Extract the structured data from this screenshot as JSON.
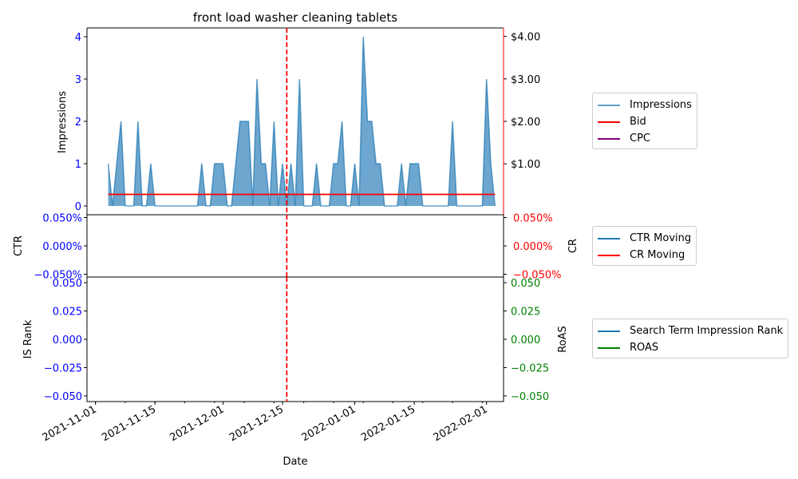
{
  "chart_data": [
    {
      "type": "area",
      "title": "front load washer cleaning tablets",
      "ylabel": "Impressions",
      "ylabel_right": "",
      "ylim": [
        0,
        4.2
      ],
      "y_ticks": [
        "0",
        "1",
        "2",
        "3",
        "4"
      ],
      "y_ticks_right": [
        "$1.00",
        "$2.00",
        "$3.00",
        "$4.00"
      ],
      "y_ticks_right_values": [
        1,
        2,
        3,
        4
      ],
      "y2lim": [
        -0.2,
        4.2
      ],
      "series": [
        {
          "name": "Impressions",
          "color": "#1f77b4",
          "points": [
            [
              "2021-11-04",
              1
            ],
            [
              "2021-11-05",
              0
            ],
            [
              "2021-11-06",
              1
            ],
            [
              "2021-11-07",
              2
            ],
            [
              "2021-11-08",
              0
            ],
            [
              "2021-11-09",
              0
            ],
            [
              "2021-11-10",
              0
            ],
            [
              "2021-11-11",
              2
            ],
            [
              "2021-11-12",
              0
            ],
            [
              "2021-11-13",
              0
            ],
            [
              "2021-11-14",
              1
            ],
            [
              "2021-11-15",
              0
            ],
            [
              "2021-11-16",
              0
            ],
            [
              "2021-11-17",
              0
            ],
            [
              "2021-11-18",
              0
            ],
            [
              "2021-11-19",
              0
            ],
            [
              "2021-11-20",
              0
            ],
            [
              "2021-11-21",
              0
            ],
            [
              "2021-11-22",
              0
            ],
            [
              "2021-11-23",
              0
            ],
            [
              "2021-11-24",
              0
            ],
            [
              "2021-11-25",
              0
            ],
            [
              "2021-11-26",
              1
            ],
            [
              "2021-11-27",
              0
            ],
            [
              "2021-11-28",
              0
            ],
            [
              "2021-11-29",
              1
            ],
            [
              "2021-11-30",
              1
            ],
            [
              "2021-12-01",
              1
            ],
            [
              "2021-12-02",
              0
            ],
            [
              "2021-12-03",
              0
            ],
            [
              "2021-12-04",
              1
            ],
            [
              "2021-12-05",
              2
            ],
            [
              "2021-12-06",
              2
            ],
            [
              "2021-12-07",
              2
            ],
            [
              "2021-12-08",
              0
            ],
            [
              "2021-12-09",
              3
            ],
            [
              "2021-12-10",
              1
            ],
            [
              "2021-12-11",
              1
            ],
            [
              "2021-12-12",
              0
            ],
            [
              "2021-12-13",
              2
            ],
            [
              "2021-12-14",
              0
            ],
            [
              "2021-12-15",
              1
            ],
            [
              "2021-12-16",
              0
            ],
            [
              "2021-12-17",
              1
            ],
            [
              "2021-12-18",
              0
            ],
            [
              "2021-12-19",
              3
            ],
            [
              "2021-12-20",
              0
            ],
            [
              "2021-12-21",
              0
            ],
            [
              "2021-12-22",
              0
            ],
            [
              "2021-12-23",
              1
            ],
            [
              "2021-12-24",
              0
            ],
            [
              "2021-12-25",
              0
            ],
            [
              "2021-12-26",
              0
            ],
            [
              "2021-12-27",
              1
            ],
            [
              "2021-12-28",
              1
            ],
            [
              "2021-12-29",
              2
            ],
            [
              "2021-12-30",
              0
            ],
            [
              "2021-12-31",
              0
            ],
            [
              "2022-01-01",
              1
            ],
            [
              "2022-01-02",
              0
            ],
            [
              "2022-01-03",
              4
            ],
            [
              "2022-01-04",
              2
            ],
            [
              "2022-01-05",
              2
            ],
            [
              "2022-01-06",
              1
            ],
            [
              "2022-01-07",
              1
            ],
            [
              "2022-01-08",
              0
            ],
            [
              "2022-01-09",
              0
            ],
            [
              "2022-01-10",
              0
            ],
            [
              "2022-01-11",
              0
            ],
            [
              "2022-01-12",
              1
            ],
            [
              "2022-01-13",
              0
            ],
            [
              "2022-01-14",
              1
            ],
            [
              "2022-01-15",
              1
            ],
            [
              "2022-01-16",
              1
            ],
            [
              "2022-01-17",
              0
            ],
            [
              "2022-01-18",
              0
            ],
            [
              "2022-01-19",
              0
            ],
            [
              "2022-01-20",
              0
            ],
            [
              "2022-01-21",
              0
            ],
            [
              "2022-01-22",
              0
            ],
            [
              "2022-01-23",
              0
            ],
            [
              "2022-01-24",
              2
            ],
            [
              "2022-01-25",
              0
            ],
            [
              "2022-01-26",
              0
            ],
            [
              "2022-01-27",
              0
            ],
            [
              "2022-01-28",
              0
            ],
            [
              "2022-01-29",
              0
            ],
            [
              "2022-01-30",
              0
            ],
            [
              "2022-01-31",
              0
            ],
            [
              "2022-02-01",
              3
            ],
            [
              "2022-02-02",
              1
            ],
            [
              "2022-02-03",
              0
            ]
          ]
        },
        {
          "name": "Bid",
          "color": "#ff0000",
          "axis": "right",
          "points": [
            [
              "2021-11-04",
              0.28
            ],
            [
              "2022-02-03",
              0.28
            ]
          ]
        },
        {
          "name": "CPC",
          "color": "#800080",
          "axis": "right",
          "points": []
        }
      ],
      "vline": {
        "x": "2021-12-16",
        "color": "#ff0000",
        "style": "dashed"
      },
      "legend_placement": "outside-right"
    },
    {
      "type": "line",
      "ylabel": "CTR",
      "ylabel_right": "CR",
      "y_ticks": [
        "0.050%",
        "0.000%",
        "−0.050%"
      ],
      "y_ticks_right": [
        "0.050%",
        "0.000%",
        "−0.050%"
      ],
      "y_tick_values": [
        0.05,
        0,
        -0.05
      ],
      "ylim": [
        -0.055,
        0.055
      ],
      "series": [
        {
          "name": "CTR Moving",
          "color": "#1f77b4",
          "points": []
        },
        {
          "name": "CR Moving",
          "color": "#ff0000",
          "points": []
        }
      ],
      "vline": {
        "x": "2021-12-16",
        "color": "#ff0000",
        "style": "dashed"
      },
      "legend_placement": "outside-right"
    },
    {
      "type": "line",
      "xlabel": "Date",
      "ylabel": "IS Rank",
      "ylabel_right": "RoAS",
      "y_ticks": [
        "0.050",
        "0.025",
        "0.000",
        "−0.025",
        "−0.050"
      ],
      "y_ticks_right": [
        "0.050",
        "0.025",
        "0.000",
        "−0.025",
        "−0.050"
      ],
      "y_tick_values": [
        0.05,
        0.025,
        0,
        -0.025,
        -0.05
      ],
      "ylim": [
        -0.055,
        0.055
      ],
      "series": [
        {
          "name": "Search Term Impression Rank",
          "color": "#1f77b4",
          "points": []
        },
        {
          "name": "ROAS",
          "color": "#008000",
          "points": []
        }
      ],
      "vline": {
        "x": "2021-12-16",
        "color": "#ff0000",
        "style": "dashed"
      },
      "x_ticks": [
        "2021-11-01",
        "2021-11-15",
        "2021-12-01",
        "2021-12-15",
        "2022-01-01",
        "2022-01-15",
        "2022-02-01"
      ],
      "xlim": [
        "2021-10-30",
        "2022-02-05"
      ],
      "legend_placement": "outside-right"
    }
  ],
  "colors": {
    "left_axis_ticks": "#0000ff",
    "right_axis_ticks_top": "#000000",
    "right_spine_top": "#ff0000",
    "right_axis_ticks_mid": "#ff0000",
    "right_axis_ticks_bottom": "#008000"
  }
}
